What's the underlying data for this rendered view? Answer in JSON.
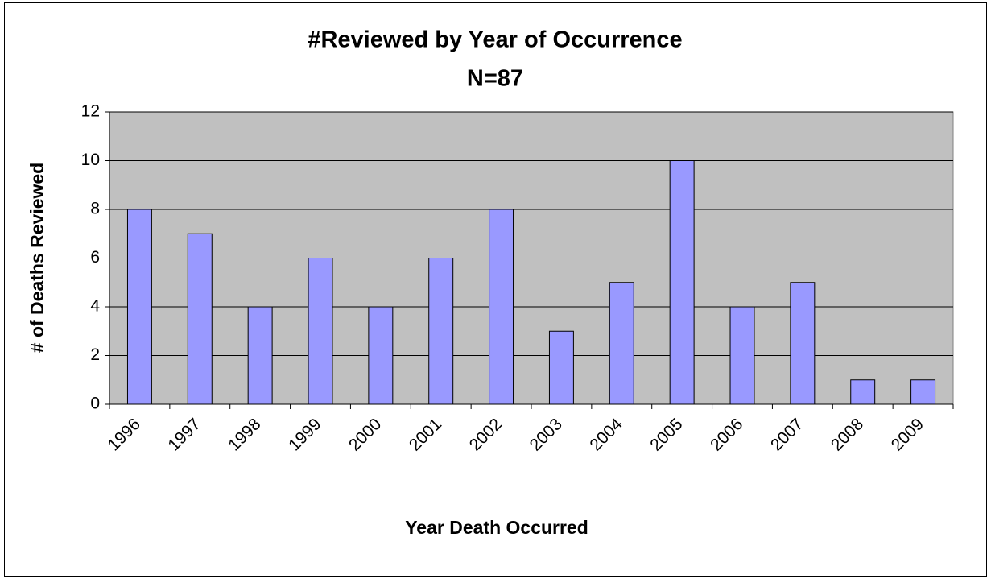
{
  "chart_data": {
    "type": "bar",
    "title": "#Reviewed by Year of Occurrence",
    "subtitle": "N=87",
    "x_label": "Year Death Occurred",
    "y_label": "# of Deaths Reviewed",
    "categories": [
      "1996",
      "1997",
      "1998",
      "1999",
      "2000",
      "2001",
      "2002",
      "2003",
      "2004",
      "2005",
      "2006",
      "2007",
      "2008",
      "2009"
    ],
    "values": [
      8,
      7,
      4,
      6,
      4,
      6,
      8,
      3,
      5,
      10,
      4,
      5,
      1,
      1
    ],
    "color": "#9999ff",
    "plot_background": "#c0c0c0",
    "ylim": [
      0,
      12
    ],
    "yticks": [
      0,
      2,
      4,
      6,
      8,
      10,
      12
    ],
    "grid": true
  }
}
